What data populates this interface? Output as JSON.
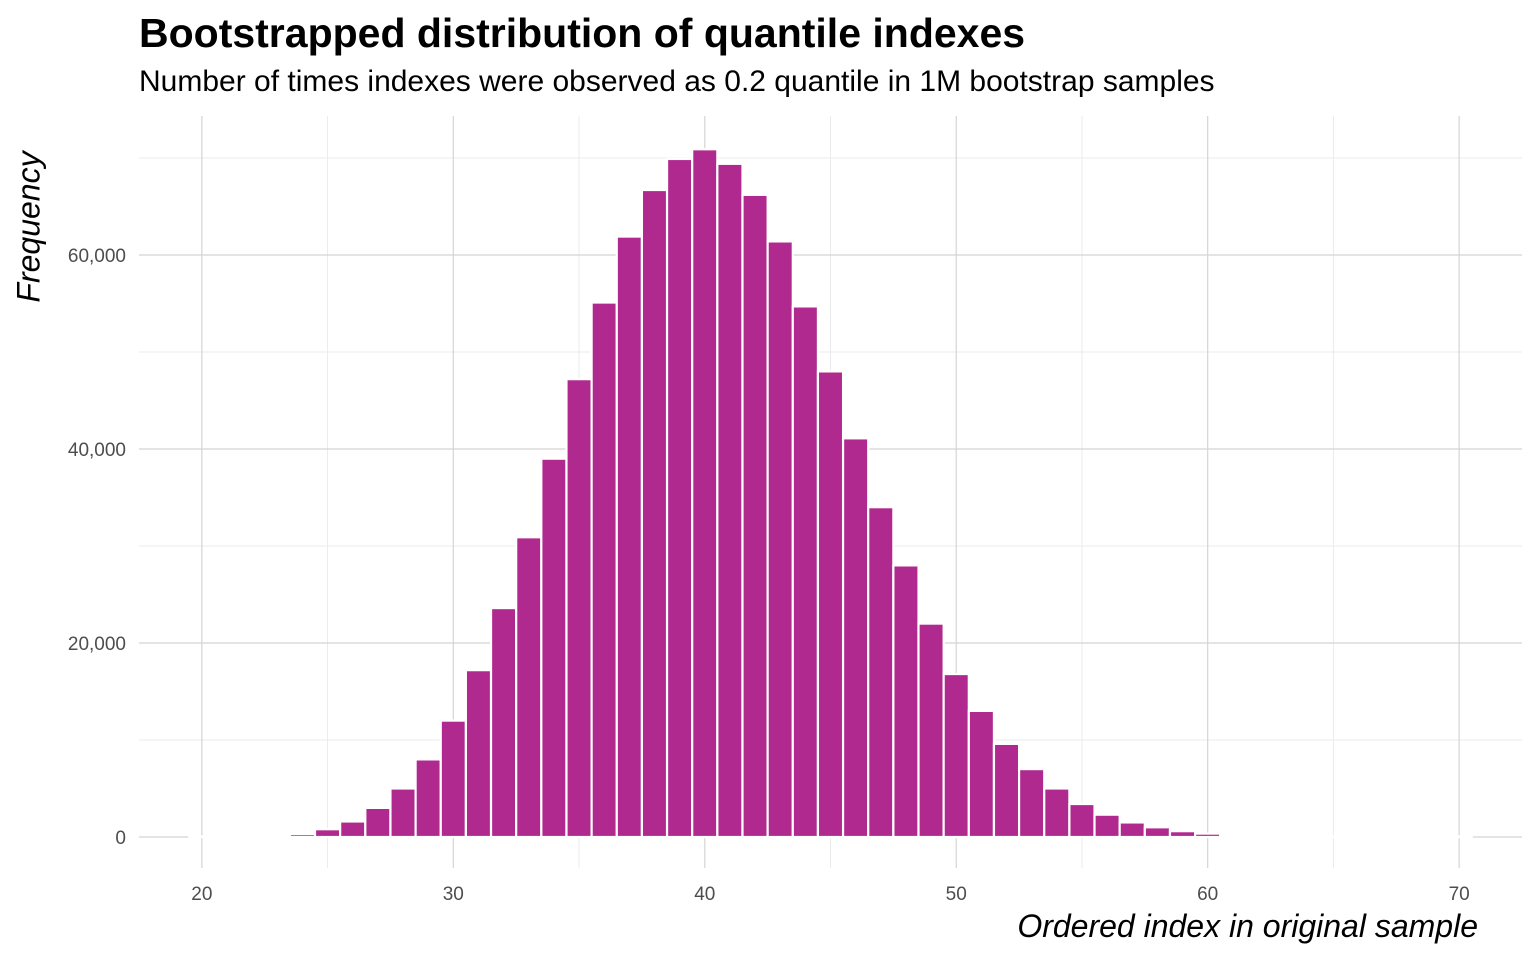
{
  "chart_data": {
    "type": "bar",
    "title": "Bootstrapped distribution of quantile indexes",
    "subtitle": "Number of times indexes were observed as 0.2 quantile in 1M bootstrap samples",
    "xlabel": "Ordered index in original sample",
    "ylabel": "Frequency",
    "xlim": [
      17.5,
      72.5
    ],
    "ylim": [
      0,
      70000
    ],
    "x_ticks": [
      20,
      30,
      40,
      50,
      60,
      70
    ],
    "x_tick_labels": [
      "20",
      "30",
      "40",
      "50",
      "60",
      "70"
    ],
    "y_ticks": [
      0,
      20000,
      40000,
      60000
    ],
    "y_tick_labels": [
      "0",
      "20,000",
      "40,000",
      "60,000"
    ],
    "grid": true,
    "bar_color": "#B0298F",
    "bar_outline": "#ffffff",
    "categories": [
      20,
      21,
      22,
      23,
      24,
      25,
      26,
      27,
      28,
      29,
      30,
      31,
      32,
      33,
      34,
      35,
      36,
      37,
      38,
      39,
      40,
      41,
      42,
      43,
      44,
      45,
      46,
      47,
      48,
      49,
      50,
      51,
      52,
      53,
      54,
      55,
      56,
      57,
      58,
      59,
      60,
      61,
      62,
      63,
      64,
      65,
      66,
      67,
      68,
      69,
      70
    ],
    "values": [
      5,
      10,
      30,
      100,
      300,
      800,
      1600,
      3000,
      5000,
      8000,
      12000,
      17200,
      23600,
      30900,
      39000,
      47200,
      55100,
      61900,
      66700,
      69900,
      70900,
      69400,
      66200,
      61400,
      54700,
      48000,
      41100,
      34000,
      28000,
      22000,
      16800,
      13000,
      9600,
      7000,
      5000,
      3400,
      2300,
      1500,
      1000,
      600,
      350,
      200,
      100,
      50,
      25,
      10,
      5,
      3,
      2,
      1,
      1
    ]
  }
}
